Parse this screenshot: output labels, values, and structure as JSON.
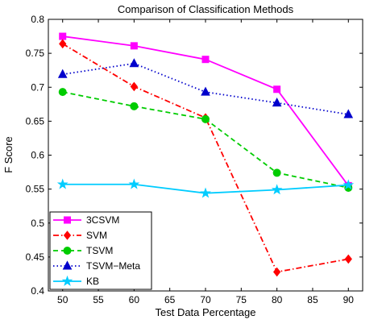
{
  "chart_data": {
    "type": "line",
    "title": "Comparison of Classification Methods",
    "xlabel": "Test Data Percentage",
    "ylabel": "F Score",
    "xlim": [
      48,
      92
    ],
    "ylim": [
      0.4,
      0.8
    ],
    "xticks": [
      50,
      55,
      60,
      65,
      70,
      75,
      80,
      85,
      90
    ],
    "yticks": [
      0.4,
      0.45,
      0.5,
      0.55,
      0.6,
      0.65,
      0.7,
      0.75,
      0.8
    ],
    "ytick_labels": [
      "0.4",
      "0.45",
      "0.5",
      "0.55",
      "0.6",
      "0.65",
      "0.7",
      "0.75",
      "0.8"
    ],
    "grid": false,
    "legend_position": "bottom-left",
    "x": [
      50,
      60,
      70,
      80,
      90
    ],
    "series": [
      {
        "name": "3CSVM",
        "values": [
          0.775,
          0.761,
          0.741,
          0.697,
          0.555
        ],
        "color": "#ff00ff",
        "dash": "solid",
        "marker": "square"
      },
      {
        "name": "SVM",
        "values": [
          0.764,
          0.701,
          0.655,
          0.428,
          0.447
        ],
        "color": "#ff0000",
        "dash": "dashdot",
        "marker": "diamond"
      },
      {
        "name": "TSVM",
        "values": [
          0.693,
          0.672,
          0.653,
          0.574,
          0.552
        ],
        "color": "#00cc00",
        "dash": "dashed",
        "marker": "circle"
      },
      {
        "name": "TSVM−Meta",
        "values": [
          0.719,
          0.735,
          0.693,
          0.677,
          0.66
        ],
        "color": "#0000cc",
        "dash": "dotted",
        "marker": "triangle"
      },
      {
        "name": "KB",
        "values": [
          0.557,
          0.557,
          0.544,
          0.549,
          0.556
        ],
        "color": "#00ccff",
        "dash": "solid",
        "marker": "star"
      }
    ]
  }
}
